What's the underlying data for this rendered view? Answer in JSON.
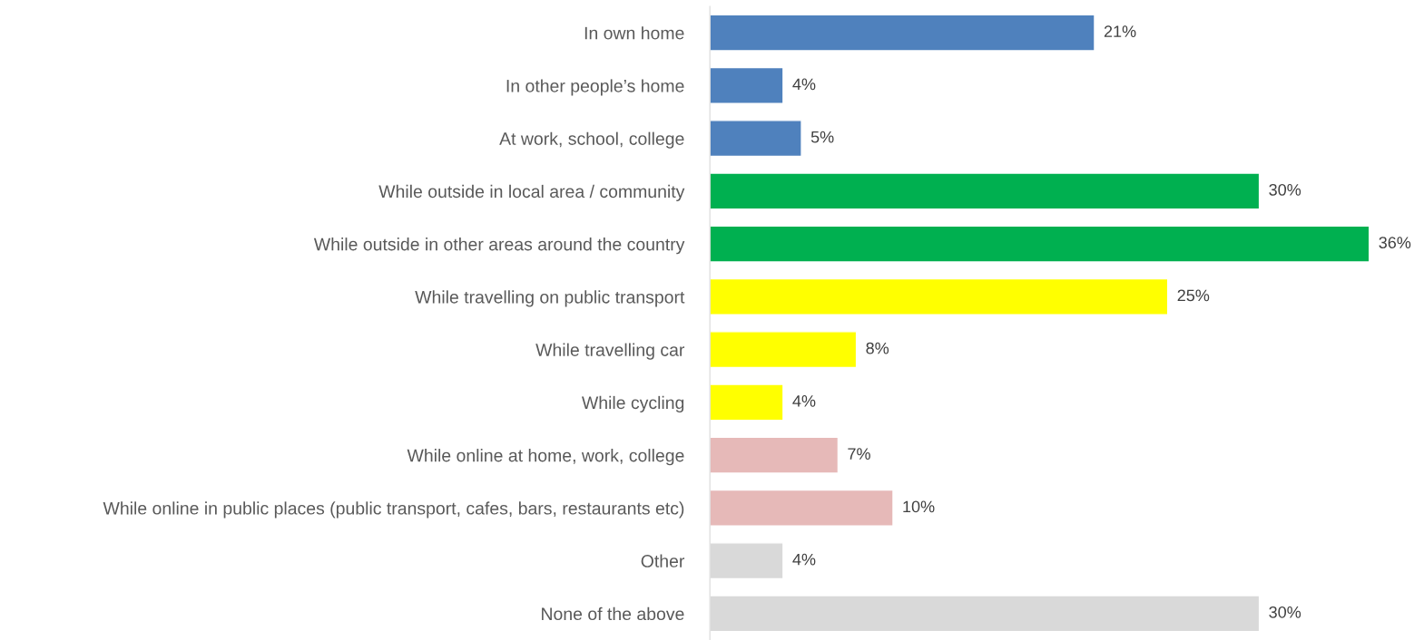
{
  "chart_data": {
    "type": "bar",
    "orientation": "horizontal",
    "categories": [
      "In own home",
      "In other people’s home",
      "At work, school, college",
      "While outside in local area / community",
      "While outside in other areas around the country",
      "While travelling on public transport",
      "While travelling car",
      "While cycling",
      "While online at home, work, college",
      "While online in public places (public transport, cafes, bars, restaurants etc)",
      "Other",
      "None of the above"
    ],
    "values": [
      21,
      4,
      5,
      30,
      36,
      25,
      8,
      4,
      7,
      10,
      4,
      30
    ],
    "colors": [
      "#4f81bd",
      "#4f81bd",
      "#4f81bd",
      "#00b050",
      "#00b050",
      "#ffff00",
      "#ffff00",
      "#ffff00",
      "#e6b9b8",
      "#e6b9b8",
      "#d9d9d9",
      "#d9d9d9"
    ],
    "value_labels": [
      "21%",
      "4%",
      "5%",
      "30%",
      "36%",
      "25%",
      "8%",
      "4%",
      "7%",
      "10%",
      "4%",
      "30%"
    ]
  }
}
